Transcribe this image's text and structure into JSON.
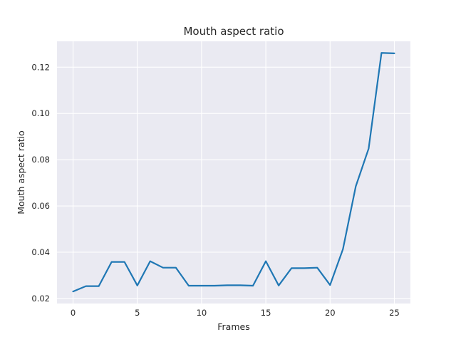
{
  "chart_data": {
    "type": "line",
    "title": "Mouth aspect ratio",
    "xlabel": "Frames",
    "ylabel": "Mouth aspect ratio",
    "xlim": [
      -1.25,
      26.25
    ],
    "ylim": [
      0.0178,
      0.1312
    ],
    "xticks": [
      0,
      5,
      10,
      15,
      20,
      25
    ],
    "xtick_labels": [
      "0",
      "5",
      "10",
      "15",
      "20",
      "25"
    ],
    "yticks": [
      0.02,
      0.04,
      0.06,
      0.08,
      0.1,
      0.12
    ],
    "ytick_labels": [
      "0.02",
      "0.04",
      "0.06",
      "0.08",
      "0.10",
      "0.12"
    ],
    "grid": true,
    "background": "#eaeaf2",
    "grid_color": "#ffffff",
    "series": [
      {
        "color": "#1f77b4",
        "x": [
          0,
          1,
          2,
          3,
          4,
          5,
          6,
          7,
          8,
          9,
          10,
          11,
          12,
          13,
          14,
          15,
          16,
          17,
          18,
          19,
          20,
          21,
          22,
          23,
          24,
          25
        ],
        "values": [
          0.023,
          0.0253,
          0.0253,
          0.0358,
          0.0358,
          0.0256,
          0.0361,
          0.0333,
          0.0333,
          0.0255,
          0.0255,
          0.0255,
          0.0257,
          0.0257,
          0.0255,
          0.0361,
          0.0256,
          0.0331,
          0.0331,
          0.0333,
          0.0258,
          0.0413,
          0.0685,
          0.0848,
          0.1262,
          0.126
        ]
      }
    ]
  }
}
